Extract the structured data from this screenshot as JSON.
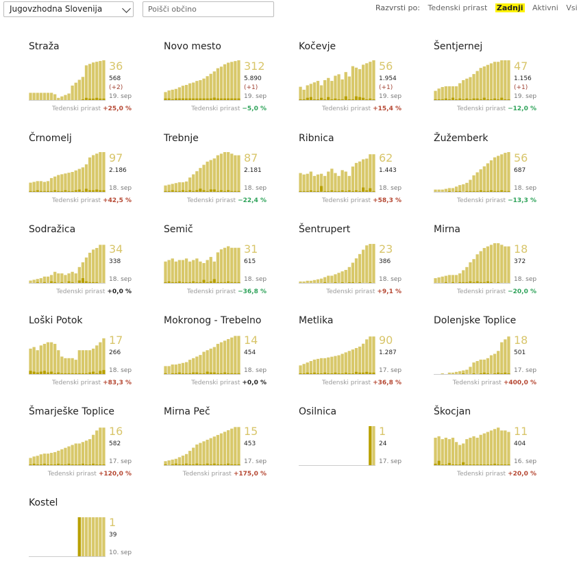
{
  "toolbar": {
    "region": "Jugovzhodna Slovenija",
    "search_placeholder": "Poišči občino",
    "sort_label": "Razvrsti po:",
    "sort_options": [
      "Tedenski prirast",
      "Zadnji",
      "Aktivni",
      "Vsi"
    ],
    "sort_active": "Zadnji"
  },
  "growth_label": "Tedenski prirast",
  "colors": {
    "bar": "#d8c86a",
    "bar_dark": "#b8a000",
    "up": "#b54732",
    "down": "#2fa35a"
  },
  "chart_data": [
    {
      "type": "bar",
      "name": "Straža",
      "active": 36,
      "total": "568",
      "delta": "(+2)",
      "date": "19. sep",
      "growth": "+25,0 %",
      "trend": "up",
      "values": [
        10,
        10,
        10,
        10,
        10,
        10,
        10,
        8,
        3,
        5,
        7,
        9,
        20,
        24,
        28,
        32,
        48,
        50,
        52,
        53,
        54,
        55
      ],
      "new": [
        0,
        0,
        0,
        0,
        0,
        0,
        0,
        0,
        0,
        0,
        0,
        0,
        0,
        0,
        0,
        1,
        3,
        2,
        2,
        3,
        2,
        2
      ],
      "ymax": 55
    },
    {
      "type": "bar",
      "name": "Novo mesto",
      "active": 312,
      "total": "5.890",
      "delta": "(+1)",
      "date": "19. sep",
      "growth": "−5,0 %",
      "trend": "down",
      "values": [
        10,
        12,
        13,
        14,
        16,
        18,
        19,
        21,
        22,
        24,
        25,
        27,
        30,
        33,
        36,
        40,
        42,
        45,
        47,
        48,
        49,
        50
      ],
      "new": [
        2,
        2,
        1,
        2,
        2,
        2,
        2,
        2,
        2,
        2,
        2,
        2,
        2,
        2,
        3,
        2,
        2,
        2,
        2,
        2,
        2,
        2
      ],
      "ymax": 50
    },
    {
      "type": "bar",
      "name": "Kočevje",
      "active": 56,
      "total": "1.954",
      "delta": "(+1)",
      "date": "19. sep",
      "growth": "+15,4 %",
      "trend": "up",
      "values": [
        18,
        14,
        20,
        22,
        24,
        26,
        20,
        27,
        30,
        26,
        33,
        35,
        28,
        38,
        32,
        46,
        44,
        42,
        48,
        50,
        52,
        54
      ],
      "new": [
        1,
        1,
        3,
        4,
        1,
        1,
        3,
        1,
        4,
        1,
        2,
        1,
        1,
        5,
        1,
        1,
        5,
        4,
        3,
        1,
        2,
        1
      ],
      "ymax": 54
    },
    {
      "type": "bar",
      "name": "Šentjernej",
      "active": 47,
      "total": "1.156",
      "delta": "(+1)",
      "date": "19. sep",
      "growth": "−12,0 %",
      "trend": "down",
      "values": [
        12,
        15,
        17,
        18,
        18,
        18,
        18,
        22,
        26,
        28,
        30,
        34,
        38,
        42,
        44,
        46,
        48,
        50,
        50,
        52,
        52,
        52
      ],
      "new": [
        1,
        1,
        1,
        2,
        1,
        3,
        1,
        2,
        1,
        2,
        1,
        2,
        2,
        1,
        3,
        1,
        1,
        2,
        1,
        3,
        1,
        1
      ],
      "ymax": 52
    },
    {
      "type": "bar",
      "name": "Črnomelj",
      "active": 97,
      "total": "2.186",
      "date": "18. sep",
      "growth": "+42,5 %",
      "trend": "up",
      "values": [
        12,
        13,
        14,
        14,
        13,
        14,
        18,
        20,
        22,
        23,
        24,
        25,
        26,
        28,
        30,
        32,
        36,
        45,
        48,
        50,
        52,
        52
      ],
      "new": [
        1,
        1,
        2,
        1,
        1,
        1,
        1,
        2,
        1,
        1,
        2,
        1,
        1,
        2,
        3,
        1,
        4,
        2,
        2,
        3,
        2,
        2
      ],
      "ymax": 52
    },
    {
      "type": "bar",
      "name": "Trebnje",
      "active": 87,
      "total": "2.181",
      "date": "18. sep",
      "growth": "−22,4 %",
      "trend": "down",
      "values": [
        8,
        9,
        10,
        11,
        12,
        12,
        13,
        18,
        22,
        26,
        30,
        34,
        38,
        40,
        42,
        46,
        48,
        50,
        50,
        48,
        46,
        46
      ],
      "new": [
        1,
        1,
        2,
        1,
        1,
        2,
        1,
        2,
        1,
        2,
        4,
        2,
        1,
        3,
        3,
        1,
        2,
        1,
        2,
        1,
        1,
        1
      ],
      "ymax": 50
    },
    {
      "type": "bar",
      "name": "Ribnica",
      "active": 62,
      "total": "1.443",
      "date": "18. sep",
      "growth": "+58,3 %",
      "trend": "up",
      "values": [
        26,
        24,
        25,
        28,
        22,
        24,
        25,
        22,
        28,
        32,
        26,
        22,
        30,
        28,
        22,
        35,
        40,
        42,
        45,
        46,
        52,
        52
      ],
      "new": [
        1,
        1,
        1,
        2,
        1,
        1,
        8,
        1,
        1,
        2,
        1,
        1,
        2,
        1,
        2,
        1,
        2,
        1,
        6,
        2,
        5,
        1
      ],
      "ymax": 55
    },
    {
      "type": "bar",
      "name": "Žužemberk",
      "active": 56,
      "total": "687",
      "date": "18. sep",
      "growth": "−13,3 %",
      "trend": "down",
      "values": [
        3,
        3,
        3,
        4,
        5,
        5,
        7,
        9,
        10,
        12,
        16,
        22,
        26,
        30,
        34,
        38,
        42,
        46,
        48,
        50,
        52,
        53
      ],
      "new": [
        0,
        0,
        0,
        0,
        1,
        0,
        1,
        1,
        0,
        1,
        1,
        1,
        1,
        2,
        1,
        1,
        2,
        1,
        1,
        2,
        1,
        1
      ],
      "ymax": 53
    },
    {
      "type": "bar",
      "name": "Sodražica",
      "active": 34,
      "total": "338",
      "date": "18. sep",
      "growth": "+0,0 %",
      "trend": "zero",
      "values": [
        3,
        4,
        5,
        6,
        8,
        8,
        10,
        14,
        12,
        12,
        10,
        12,
        14,
        12,
        20,
        26,
        32,
        38,
        42,
        44,
        48,
        48
      ],
      "new": [
        0,
        0,
        1,
        0,
        1,
        0,
        2,
        1,
        0,
        1,
        0,
        2,
        1,
        0,
        3,
        6,
        2,
        1,
        1,
        1,
        0,
        0
      ],
      "ymax": 50
    },
    {
      "type": "bar",
      "name": "Semič",
      "active": 31,
      "total": "615",
      "date": "18. sep",
      "growth": "−36,8 %",
      "trend": "down",
      "values": [
        28,
        30,
        32,
        28,
        30,
        30,
        32,
        28,
        30,
        32,
        28,
        26,
        30,
        34,
        28,
        40,
        44,
        46,
        48,
        46,
        46,
        46
      ],
      "new": [
        1,
        2,
        1,
        1,
        2,
        1,
        1,
        1,
        2,
        1,
        1,
        4,
        1,
        2,
        5,
        1,
        1,
        1,
        2,
        1,
        1,
        1
      ],
      "ymax": 52
    },
    {
      "type": "bar",
      "name": "Šentrupert",
      "active": 23,
      "total": "386",
      "date": "18. sep",
      "growth": "+9,1 %",
      "trend": "up",
      "values": [
        2,
        2,
        3,
        3,
        4,
        5,
        6,
        8,
        10,
        10,
        12,
        14,
        16,
        18,
        22,
        28,
        34,
        40,
        46,
        52,
        54,
        54
      ],
      "new": [
        0,
        0,
        0,
        0,
        0,
        0,
        0,
        1,
        0,
        0,
        1,
        0,
        1,
        0,
        1,
        1,
        0,
        1,
        0,
        0,
        1,
        0
      ],
      "ymax": 55
    },
    {
      "type": "bar",
      "name": "Mirna",
      "active": 18,
      "total": "372",
      "date": "18. sep",
      "growth": "−20,0 %",
      "trend": "down",
      "values": [
        6,
        7,
        8,
        9,
        10,
        10,
        10,
        12,
        16,
        20,
        26,
        30,
        36,
        40,
        44,
        46,
        48,
        50,
        50,
        48,
        46,
        46
      ],
      "new": [
        0,
        0,
        0,
        1,
        0,
        1,
        0,
        1,
        1,
        1,
        2,
        1,
        2,
        1,
        1,
        2,
        1,
        0,
        1,
        0,
        0,
        0
      ],
      "ymax": 50
    },
    {
      "type": "bar",
      "name": "Loški Potok",
      "active": 17,
      "total": "266",
      "date": "18. sep",
      "growth": "+83,3 %",
      "trend": "up",
      "values": [
        32,
        34,
        30,
        36,
        38,
        40,
        40,
        38,
        30,
        22,
        20,
        20,
        20,
        18,
        30,
        30,
        30,
        30,
        32,
        36,
        40,
        45
      ],
      "new": [
        4,
        3,
        2,
        3,
        4,
        2,
        3,
        1,
        2,
        1,
        1,
        1,
        1,
        1,
        1,
        1,
        1,
        2,
        3,
        1,
        4,
        5
      ],
      "ymax": 50
    },
    {
      "type": "bar",
      "name": "Mokronog - Trebelno",
      "active": 14,
      "total": "454",
      "date": "18. sep",
      "growth": "+0,0 %",
      "trend": "zero",
      "values": [
        10,
        10,
        12,
        12,
        13,
        14,
        15,
        18,
        20,
        22,
        24,
        28,
        30,
        32,
        34,
        38,
        40,
        42,
        44,
        46,
        48,
        48
      ],
      "new": [
        1,
        0,
        1,
        1,
        2,
        1,
        1,
        1,
        2,
        2,
        1,
        1,
        3,
        2,
        2,
        1,
        1,
        2,
        1,
        1,
        1,
        1
      ],
      "ymax": 50
    },
    {
      "type": "bar",
      "name": "Metlika",
      "active": 90,
      "total": "1.287",
      "date": "17. sep",
      "growth": "+36,8 %",
      "trend": "up",
      "values": [
        12,
        14,
        16,
        18,
        20,
        21,
        22,
        22,
        23,
        24,
        25,
        26,
        28,
        30,
        32,
        34,
        36,
        38,
        42,
        48,
        52,
        52
      ],
      "new": [
        1,
        1,
        2,
        1,
        2,
        1,
        1,
        2,
        1,
        1,
        2,
        1,
        1,
        2,
        1,
        1,
        3,
        2,
        2,
        3,
        2,
        2
      ],
      "ymax": 55
    },
    {
      "type": "bar",
      "name": "Dolenjske Toplice",
      "active": 18,
      "total": "501",
      "date": "17. sep",
      "growth": "+400,0 %",
      "trend": "up",
      "values": [
        0,
        0,
        1,
        0,
        2,
        2,
        3,
        4,
        5,
        6,
        10,
        16,
        18,
        20,
        20,
        22,
        26,
        28,
        32,
        44,
        48,
        52
      ],
      "new": [
        0,
        0,
        0,
        0,
        0,
        0,
        0,
        0,
        1,
        0,
        0,
        1,
        0,
        1,
        2,
        1,
        0,
        1,
        2,
        1,
        2,
        1
      ],
      "ymax": 55
    },
    {
      "type": "bar",
      "name": "Šmarješke Toplice",
      "active": 16,
      "total": "582",
      "date": "17. sep",
      "growth": "+120,0 %",
      "trend": "up",
      "values": [
        10,
        12,
        13,
        15,
        16,
        16,
        17,
        18,
        20,
        22,
        24,
        26,
        28,
        30,
        30,
        32,
        34,
        36,
        42,
        48,
        52,
        52
      ],
      "new": [
        1,
        2,
        1,
        1,
        2,
        1,
        1,
        1,
        2,
        1,
        1,
        2,
        1,
        1,
        1,
        2,
        1,
        1,
        2,
        1,
        1,
        1
      ],
      "ymax": 55
    },
    {
      "type": "bar",
      "name": "Mirna Peč",
      "active": 15,
      "total": "453",
      "date": "17. sep",
      "growth": "+175,0 %",
      "trend": "up",
      "values": [
        5,
        6,
        7,
        8,
        10,
        12,
        14,
        18,
        22,
        26,
        28,
        30,
        32,
        34,
        36,
        38,
        40,
        42,
        44,
        46,
        48,
        48
      ],
      "new": [
        1,
        0,
        1,
        2,
        1,
        1,
        2,
        1,
        1,
        2,
        1,
        1,
        2,
        1,
        2,
        1,
        1,
        1,
        2,
        1,
        1,
        1
      ],
      "ymax": 50
    },
    {
      "type": "bar",
      "name": "Osilnica",
      "active": 1,
      "total": "24",
      "date": "17. sep",
      "growth": "",
      "trend": "zero",
      "values": [
        0,
        0,
        0,
        0,
        0,
        0,
        0,
        0,
        0,
        0,
        0,
        0,
        0,
        0,
        0,
        0,
        0,
        0,
        0,
        0,
        54,
        54
      ],
      "new": [
        0,
        0,
        0,
        0,
        0,
        0,
        0,
        0,
        0,
        0,
        0,
        0,
        0,
        0,
        0,
        0,
        0,
        0,
        0,
        0,
        54,
        0
      ],
      "ymax": 55
    },
    {
      "type": "bar",
      "name": "Škocjan",
      "active": 11,
      "total": "404",
      "date": "16. sep",
      "growth": "+20,0 %",
      "trend": "up",
      "values": [
        38,
        40,
        36,
        38,
        36,
        38,
        32,
        28,
        30,
        36,
        38,
        40,
        38,
        42,
        44,
        46,
        48,
        50,
        52,
        48,
        48,
        46
      ],
      "new": [
        2,
        6,
        1,
        1,
        3,
        1,
        1,
        1,
        4,
        1,
        1,
        1,
        1,
        1,
        1,
        1,
        1,
        2,
        1,
        1,
        1,
        1
      ],
      "ymax": 55
    },
    {
      "type": "bar",
      "name": "Kostel",
      "active": 1,
      "total": "39",
      "date": "10. sep",
      "growth": "",
      "trend": "zero",
      "values": [
        0,
        0,
        0,
        0,
        0,
        0,
        0,
        0,
        0,
        0,
        0,
        0,
        0,
        0,
        54,
        54,
        54,
        54,
        54,
        54,
        54,
        54
      ],
      "new": [
        0,
        0,
        0,
        0,
        0,
        0,
        0,
        0,
        0,
        0,
        0,
        0,
        0,
        0,
        54,
        0,
        0,
        0,
        0,
        0,
        0,
        0
      ],
      "ymax": 55
    }
  ]
}
